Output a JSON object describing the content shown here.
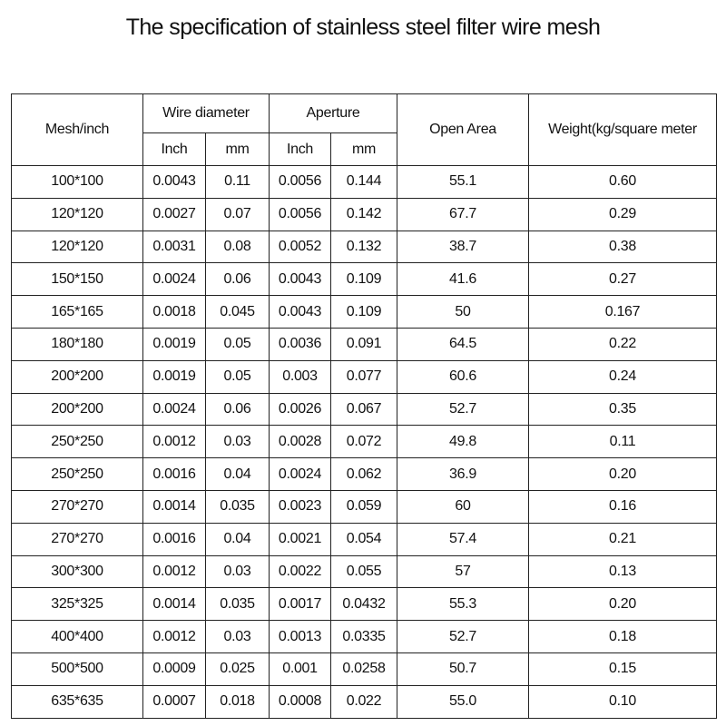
{
  "header": {
    "title": "The specification of stainless steel filter wire mesh"
  },
  "table": {
    "columns": {
      "mesh": "Mesh/inch",
      "wire_diameter": "Wire diameter",
      "aperture": "Aperture",
      "open_area": "Open Area",
      "weight": "Weight(kg/square meter"
    },
    "subcolumns": [
      "Inch",
      "mm",
      "Inch",
      "mm"
    ],
    "rows": [
      [
        "100*100",
        "0.0043",
        "0.11",
        "0.0056",
        "0.144",
        "55.1",
        "0.60"
      ],
      [
        "120*120",
        "0.0027",
        "0.07",
        "0.0056",
        "0.142",
        "67.7",
        "0.29"
      ],
      [
        "120*120",
        "0.0031",
        "0.08",
        "0.0052",
        "0.132",
        "38.7",
        "0.38"
      ],
      [
        "150*150",
        "0.0024",
        "0.06",
        "0.0043",
        "0.109",
        "41.6",
        "0.27"
      ],
      [
        "165*165",
        "0.0018",
        "0.045",
        "0.0043",
        "0.109",
        "50",
        "0.167"
      ],
      [
        "180*180",
        "0.0019",
        "0.05",
        "0.0036",
        "0.091",
        "64.5",
        "0.22"
      ],
      [
        "200*200",
        "0.0019",
        "0.05",
        "0.003",
        "0.077",
        "60.6",
        "0.24"
      ],
      [
        "200*200",
        "0.0024",
        "0.06",
        "0.0026",
        "0.067",
        "52.7",
        "0.35"
      ],
      [
        "250*250",
        "0.0012",
        "0.03",
        "0.0028",
        "0.072",
        "49.8",
        "0.11"
      ],
      [
        "250*250",
        "0.0016",
        "0.04",
        "0.0024",
        "0.062",
        "36.9",
        "0.20"
      ],
      [
        "270*270",
        "0.0014",
        "0.035",
        "0.0023",
        "0.059",
        "60",
        "0.16"
      ],
      [
        "270*270",
        "0.0016",
        "0.04",
        "0.0021",
        "0.054",
        "57.4",
        "0.21"
      ],
      [
        "300*300",
        "0.0012",
        "0.03",
        "0.0022",
        "0.055",
        "57",
        "0.13"
      ],
      [
        "325*325",
        "0.0014",
        "0.035",
        "0.0017",
        "0.0432",
        "55.3",
        "0.20"
      ],
      [
        "400*400",
        "0.0012",
        "0.03",
        "0.0013",
        "0.0335",
        "52.7",
        "0.18"
      ],
      [
        "500*500",
        "0.0009",
        "0.025",
        "0.001",
        "0.0258",
        "50.7",
        "0.15"
      ],
      [
        "635*635",
        "0.0007",
        "0.018",
        "0.0008",
        "0.022",
        "55.0",
        "0.10"
      ]
    ]
  }
}
